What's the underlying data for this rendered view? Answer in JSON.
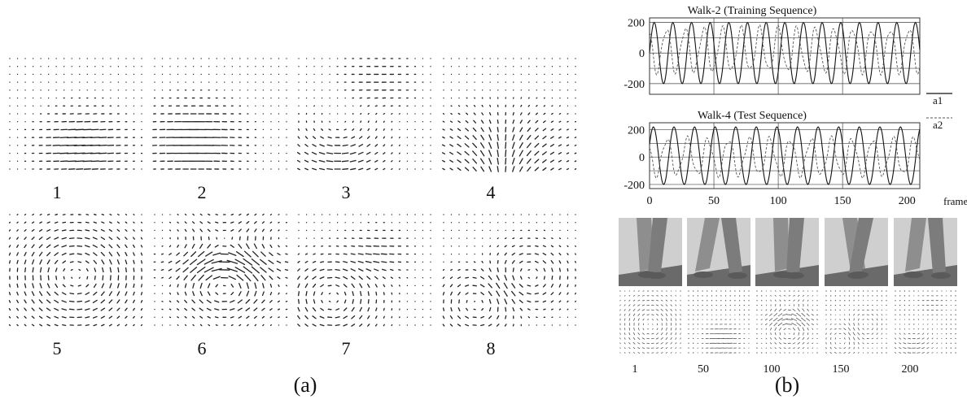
{
  "panel_a": {
    "label": "(a)",
    "fields": [
      {
        "label": "1",
        "pattern": "horizontal-bottom"
      },
      {
        "label": "2",
        "pattern": "horizontal-bottom-left"
      },
      {
        "label": "3",
        "pattern": "curl-bottom-left"
      },
      {
        "label": "4",
        "pattern": "diverge-bottom"
      },
      {
        "label": "5",
        "pattern": "rotation-center"
      },
      {
        "label": "6",
        "pattern": "wave-center"
      },
      {
        "label": "7",
        "pattern": "vortex-bottom-left"
      },
      {
        "label": "8",
        "pattern": "vortex-two"
      }
    ]
  },
  "panel_b": {
    "label": "(b)",
    "legend": [
      {
        "label": "a1",
        "style": "solid"
      },
      {
        "label": "a2",
        "style": "dashed"
      }
    ],
    "frame_labels": [
      "1",
      "50",
      "100",
      "150",
      "200"
    ],
    "colors": {
      "series_a1": "#111111",
      "series_a2": "#555555",
      "photo": "#8a8a8a"
    }
  },
  "chart_data": [
    {
      "type": "line",
      "title": "Walk-2 (Training Sequence)",
      "xlim": [
        0,
        210
      ],
      "ylim": [
        -270,
        230
      ],
      "yticks": [
        200,
        0,
        -200
      ],
      "grid": true,
      "series": [
        {
          "name": "a1",
          "style": "solid",
          "amplitude": 200,
          "period": 14.5,
          "phase": 0,
          "x": [
            0,
            210
          ],
          "offset": 0
        },
        {
          "name": "a2",
          "style": "dashed",
          "amplitude": 140,
          "period": 14.5,
          "phase": 2.2,
          "x": [
            0,
            210
          ],
          "offset": 20
        }
      ]
    },
    {
      "type": "line",
      "title": "Walk-4 (Test Sequence)",
      "xlim": [
        0,
        210
      ],
      "ylim": [
        -230,
        250
      ],
      "xticks": [
        0,
        50,
        100,
        150,
        200
      ],
      "yticks": [
        200,
        0,
        -200
      ],
      "xlabel": "frame",
      "grid": true,
      "series": [
        {
          "name": "a1",
          "style": "solid",
          "amplitude": 210,
          "period": 16,
          "phase": 0.4,
          "x": [
            0,
            210
          ],
          "offset": 10
        },
        {
          "name": "a2",
          "style": "dashed",
          "amplitude": 130,
          "period": 16,
          "phase": 2.6,
          "x": [
            0,
            210
          ],
          "offset": 0
        }
      ]
    }
  ]
}
